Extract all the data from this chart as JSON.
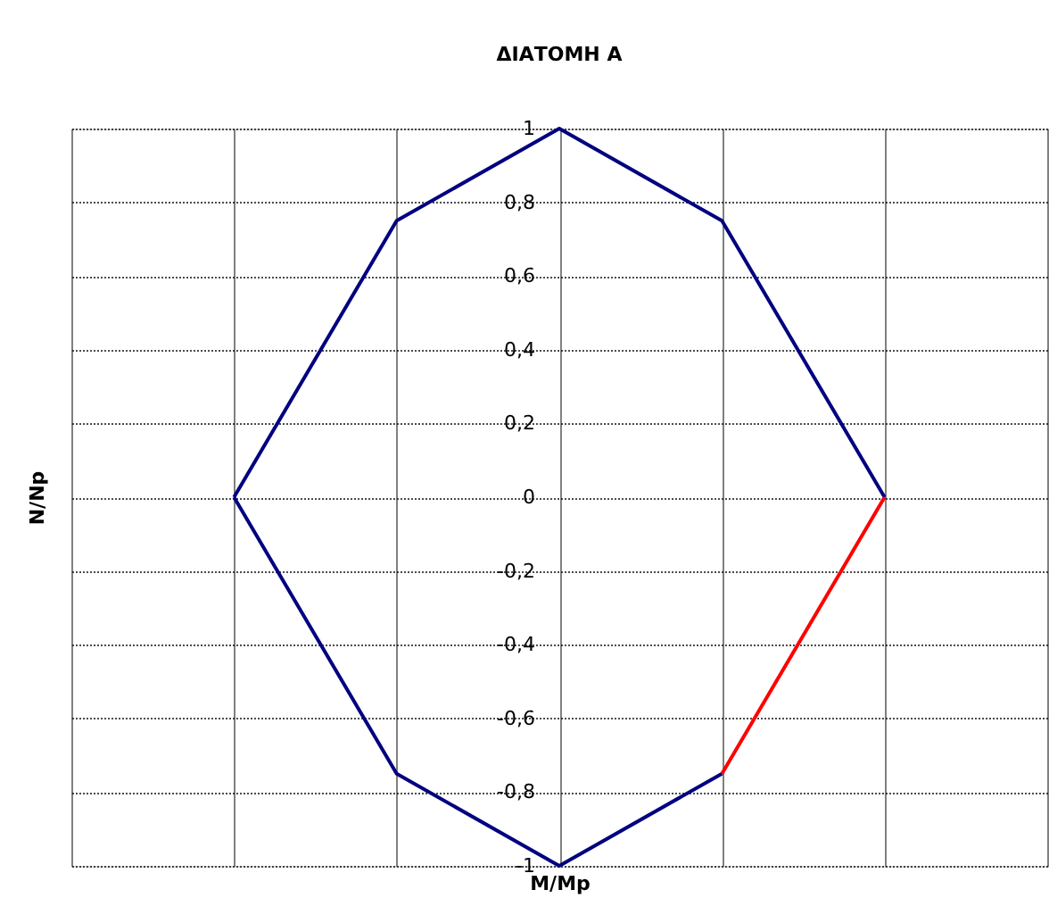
{
  "chart_data": {
    "type": "line",
    "title": "ΔΙΑΤΟΜΗ A",
    "xlabel": "M/Mp",
    "ylabel": "N/Np",
    "categories": [
      null,
      null,
      null,
      null,
      null,
      null,
      null
    ],
    "series": [
      {
        "color": "#000080",
        "values": [
          null,
          0,
          0.75,
          1,
          0.75,
          0,
          null
        ]
      },
      {
        "color": "#000080",
        "values": [
          null,
          0,
          -0.75,
          -1,
          -0.75,
          null,
          null
        ]
      },
      {
        "color": "#ff0000",
        "values": [
          null,
          null,
          null,
          null,
          -0.75,
          0,
          null
        ]
      }
    ],
    "ylim": [
      -1,
      1
    ],
    "yticks": [
      -1,
      {
        "value": -0.8,
        "label": "-0,8"
      },
      {
        "value": -0.6,
        "label": "-0,6"
      },
      {
        "value": -0.4,
        "label": "-0,4"
      },
      {
        "value": -0.2,
        "label": "-0,2"
      },
      0,
      {
        "value": 0.2,
        "label": "0,2"
      },
      {
        "value": 0.4,
        "label": "0,4"
      },
      {
        "value": 0.6,
        "label": "0,6"
      },
      {
        "value": 0.8,
        "label": "0,8"
      },
      1
    ],
    "grid": true,
    "tick_labels": "y",
    "marker": "none",
    "line_style": "solid"
  }
}
